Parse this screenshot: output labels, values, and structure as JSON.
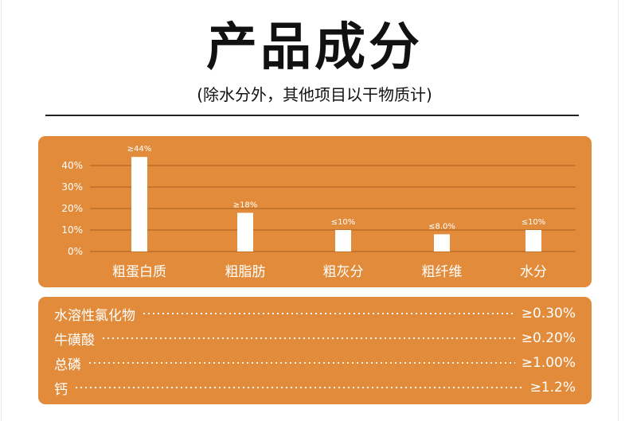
{
  "title": "产品成分",
  "subtitle": "(除水分外，其他项目以干物质计)",
  "colors": {
    "card": "#e28b3a",
    "bar": "#ffffff",
    "text": "#ffffff",
    "title": "#111111"
  },
  "chart_data": {
    "type": "bar",
    "categories": [
      "粗蛋白质",
      "粗脂肪",
      "粗灰分",
      "粗纤维",
      "水分"
    ],
    "values": [
      44,
      18,
      10,
      8,
      10
    ],
    "data_labels": [
      "≥44%",
      "≥18%",
      "≤10%",
      "≤8.0%",
      "≤10%"
    ],
    "y_ticks": [
      "0%",
      "10%",
      "20%",
      "30%",
      "40%"
    ],
    "y_tick_values": [
      0,
      10,
      20,
      30,
      40
    ],
    "ylim": [
      0,
      44
    ],
    "grid": true,
    "legend": "none"
  },
  "nutrients": [
    {
      "name": "水溶性氯化物",
      "value": "≥0.30%"
    },
    {
      "name": "牛磺酸",
      "value": "≥0.20%"
    },
    {
      "name": "总磷",
      "value": "≥1.00%"
    },
    {
      "name": "钙",
      "value": "≥1.2%"
    }
  ]
}
